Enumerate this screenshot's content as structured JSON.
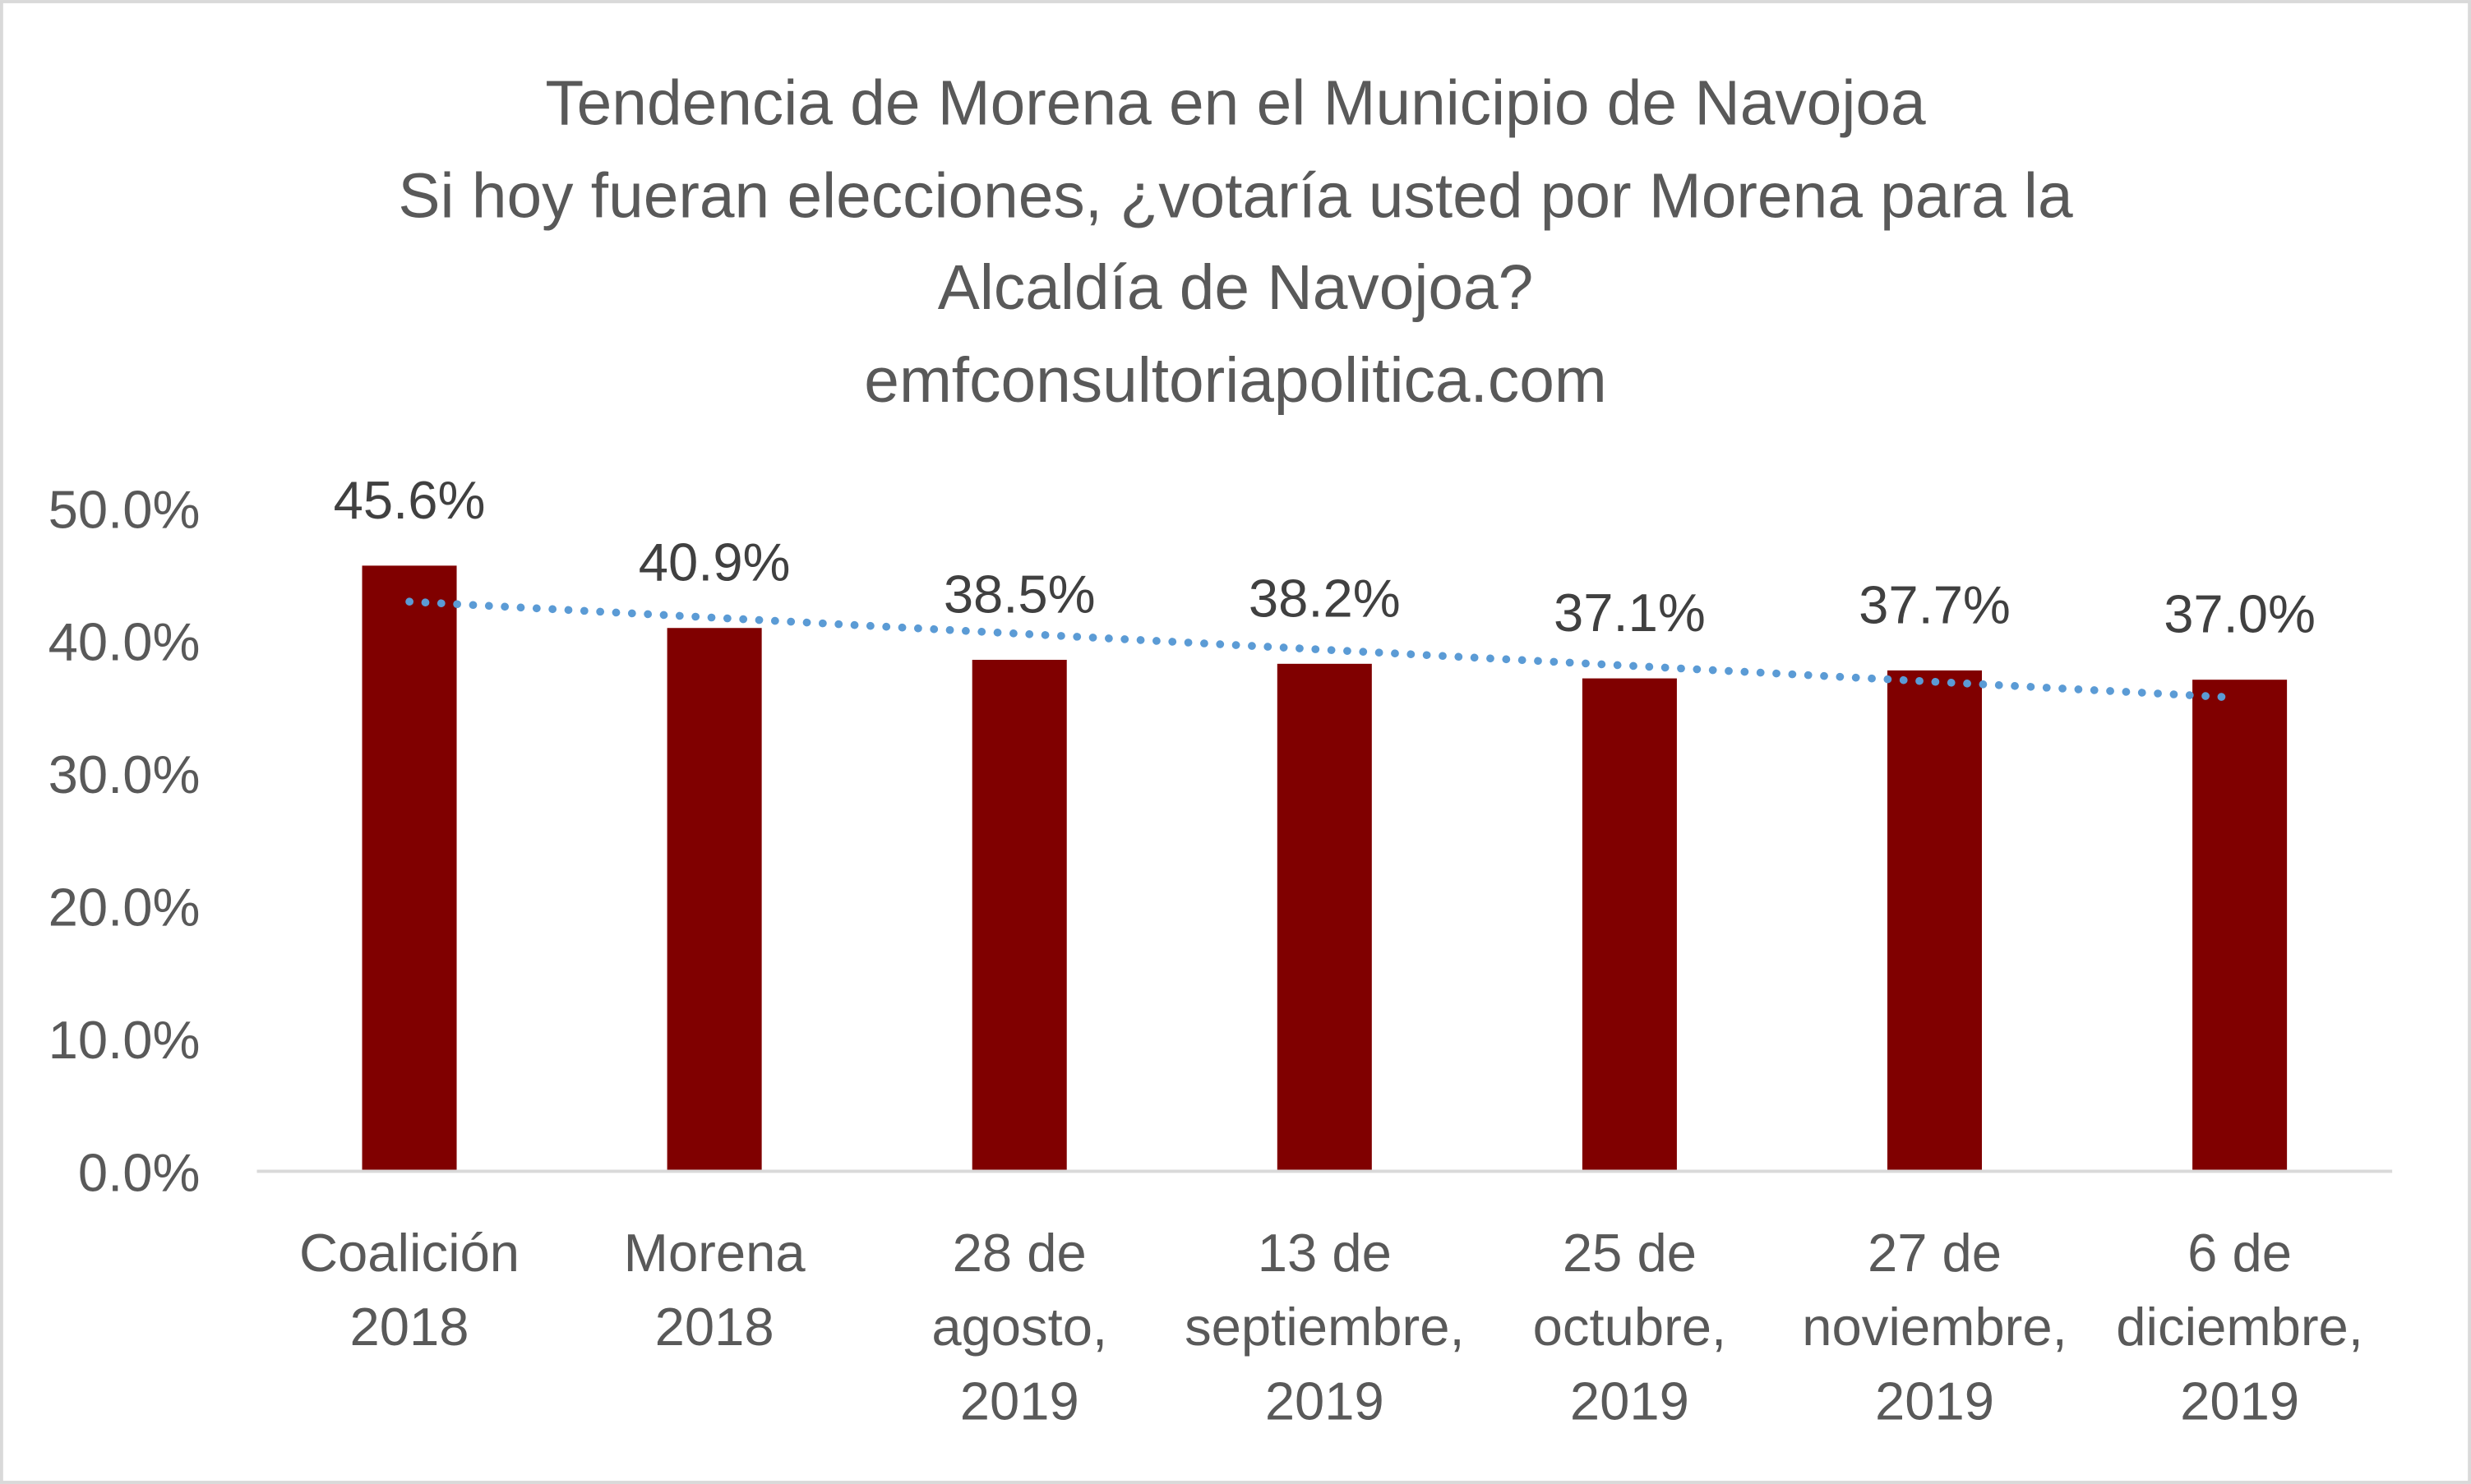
{
  "chart_data": {
    "type": "bar",
    "title_lines": [
      "Tendencia de Morena en el Municipio de Navojoa",
      "Si hoy fueran elecciones, ¿votaría usted por Morena para la",
      "Alcaldía de Navojoa?",
      "emfconsultoriapolitica.com"
    ],
    "categories": [
      [
        "Coalición",
        "2018"
      ],
      [
        "Morena",
        "2018"
      ],
      [
        "28 de",
        "agosto,",
        "2019"
      ],
      [
        "13 de",
        "septiembre,",
        "2019"
      ],
      [
        "25 de",
        "octubre,",
        "2019"
      ],
      [
        "27 de",
        "noviembre,",
        "2019"
      ],
      [
        "6 de",
        "diciembre,",
        "2019"
      ]
    ],
    "values": [
      45.6,
      40.9,
      38.5,
      38.2,
      37.1,
      37.7,
      37.0
    ],
    "data_labels": [
      "45.6%",
      "40.9%",
      "38.5%",
      "38.2%",
      "37.1%",
      "37.7%",
      "37.0%"
    ],
    "yticks": [
      "0.0%",
      "10.0%",
      "20.0%",
      "30.0%",
      "40.0%",
      "50.0%"
    ],
    "ylim": [
      0,
      50
    ],
    "xlabel": "",
    "ylabel": "",
    "grid": false,
    "trendline": {
      "type": "linear",
      "style": "dotted",
      "color": "#5B9BD5"
    },
    "colors": {
      "bar": "#800000",
      "text": "#595959",
      "label": "#404040",
      "axis": "#D9D9D9"
    }
  }
}
